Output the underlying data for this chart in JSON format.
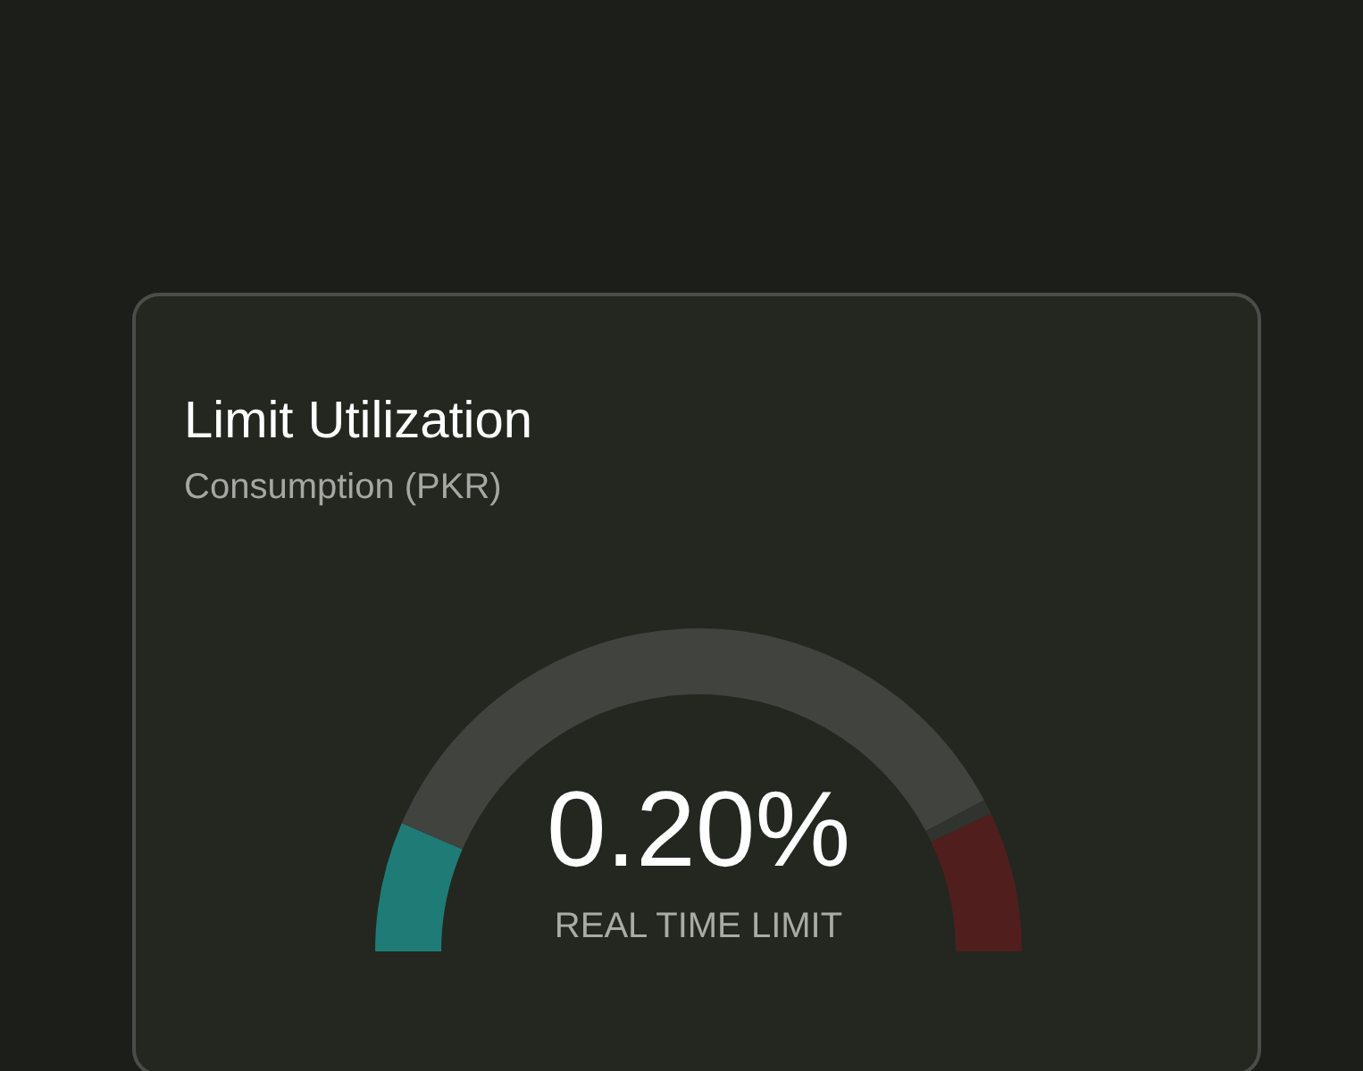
{
  "chart_data": {
    "type": "donut",
    "title": "Limit Utilization",
    "subtitle": "Consumption (PKR)",
    "categories": [
      null,
      null,
      null,
      null
    ],
    "values": [
      13,
      71.5,
      1.5,
      14
    ],
    "colors": [
      "#1f7b76",
      "#40433e",
      "#30332e",
      "#511e1e"
    ],
    "annotations": [
      "0.20%",
      "REAL TIME LIMIT"
    ]
  }
}
